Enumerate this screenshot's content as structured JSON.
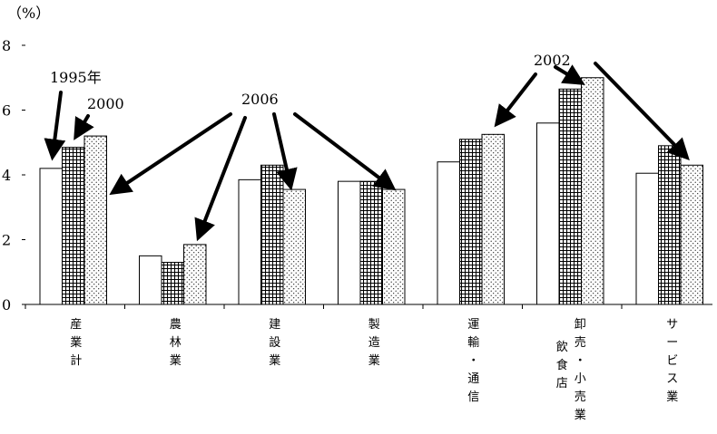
{
  "chart_data": {
    "type": "bar",
    "unit_label": "（%）",
    "ylim": [
      0,
      8
    ],
    "yticks": [
      0,
      2,
      4,
      6,
      8
    ],
    "categories": [
      [
        "産",
        "業",
        "計"
      ],
      [
        "農",
        "林",
        "業"
      ],
      [
        "建",
        "設",
        "業"
      ],
      [
        "製",
        "造",
        "業"
      ],
      [
        "運",
        "輸",
        "・",
        "通",
        "信"
      ],
      [
        "卸売・小売業",
        "飲食店"
      ],
      [
        "サ",
        "ー",
        "ビ",
        "ス",
        "業"
      ]
    ],
    "series": [
      {
        "values": [
          4.2,
          1.5,
          3.85,
          3.8,
          4.4,
          5.6,
          4.05
        ]
      },
      {
        "values": [
          4.85,
          1.3,
          4.3,
          3.8,
          5.1,
          6.65,
          4.9
        ]
      },
      {
        "values": [
          5.2,
          1.85,
          3.55,
          3.55,
          5.25,
          7.0,
          4.3
        ]
      }
    ],
    "annotations": [
      "1995年",
      "2000",
      "2006",
      "2002"
    ],
    "legend": "annotated with arrows",
    "grid": false
  }
}
